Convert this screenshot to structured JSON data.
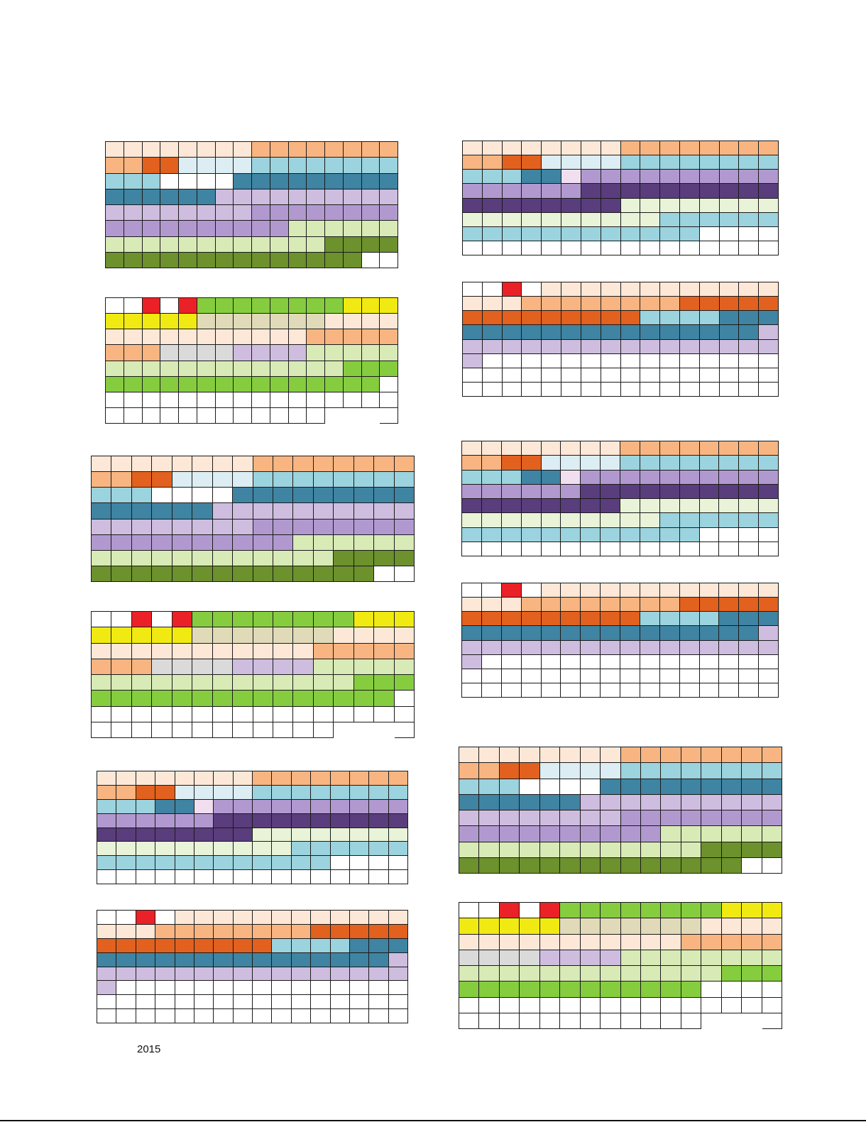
{
  "footer": {
    "year": "2015"
  },
  "colors": {
    "W": "#ffffff",
    "P": "#fde8d8",
    "O": "#f8b581",
    "D": "#e2611f",
    "I": "#dcedf3",
    "C": "#9bd3de",
    "T": "#3f84a2",
    "L": "#cfbde0",
    "M": "#b199d0",
    "N": "#5a3d7d",
    "H": "#f1dff0",
    "G": "#d8eab6",
    "E": "#6c912d",
    "F": "#e8f3d8",
    "B": "#85cd3f",
    "Y": "#f1ea12",
    "R": "#ea2227",
    "K": "#e0dab9",
    "S": "#dadada",
    "X": null
  },
  "grids": [
    {
      "name": "grid-a",
      "rows": [
        "PPPPPPPPOOOOOOOO",
        "OODDIIIICCCCCCCC",
        "CCCWWWWTTTTTTTTT",
        "TTTTTTLLLLLLLLLL",
        "LLLLLLLLMMMMMMMM",
        "MMMMMMMMMMGGGGGG",
        "GGGGGGGGGGGGEEEE",
        "EEEEEEEEEEEEEEWW"
      ]
    },
    {
      "name": "grid-b",
      "rows": [
        "WWRWRBBBBBBBBYYY",
        "YYYYYKKKKKKKPPPP",
        "PPPPPPPPPPPOOOOO",
        "OOOSSSSLLLLGGGGG",
        "GGGGGGGGGGGGGBBB",
        "BBBBBBBBBBBBBBBW",
        "WWWWWWWWWWWWWWWW",
        "WWWWWWWWWWWWXXXW"
      ]
    },
    {
      "name": "grid-c",
      "rows": [
        "PPPPPPPPOOOOOOOO",
        "OODDIIIICCCCCCCC",
        "CCCWWWWTTTTTTTTT",
        "TTTTTTLLLLLLLLLL",
        "LLLLLLLLMMMMMMMM",
        "MMMMMMMMMMGGGGGG",
        "GGGGGGGGGGGGEEEE",
        "EEEEEEEEEEEEEEWW"
      ]
    },
    {
      "name": "grid-d",
      "rows": [
        "WWRWRBBBBBBBBYYY",
        "YYYYYKKKKKKKPPPP",
        "PPPPPPPPPPPOOOOO",
        "OOOSSSSLLLLGGGGG",
        "GGGGGGGGGGGGGBBB",
        "BBBBBBBBBBBBBBBW",
        "WWWWWWWWWWWWWWWW",
        "WWWWWWWWWWWWXXXW"
      ]
    },
    {
      "name": "grid-e",
      "rows": [
        "PPPPPPPPOOOOOOOO",
        "OODDIIIICCCCCCCC",
        "CCCTTHMMMMMMMMMM",
        "MMMMMMNNNNNNNNNN",
        "NNNNNNNNFFFFFFFF",
        "FFFFFFFFFFCCCCCC",
        "CCCCCCCCCCCCWWWW",
        "WWWWWWWWWWWWWWWW"
      ]
    },
    {
      "name": "grid-f",
      "rows": [
        "WWRWPPPPPPPPPPPP",
        "PPPOOOOOOOODDDDD",
        "DDDDDDDDDCCCCTTT",
        "TTTTTTTTTTTTTTTL",
        "LLLLLLLLLLLLLLLL",
        "LWWWWWWWWWWWWWWW",
        "WWWWWWWWWWWWWWWW",
        "WWWWWWWWWWWWWWWW"
      ]
    },
    {
      "name": "grid-g",
      "rows": [
        "PPPPPPPPOOOOOOOO",
        "OODDIIIICCCCCCCC",
        "CCCTTHMMMMMMMMMM",
        "MMMMMMNNNNNNNNNN",
        "NNNNNNNNFFFFFFFF",
        "FFFFFFFFFFCCCCCC",
        "CCCCCCCCCCCCWWWW",
        "WWWWWWWWWWWWWWWW"
      ]
    },
    {
      "name": "grid-h",
      "rows": [
        "WWRWPPPPPPPPPPPP",
        "PPPOOOOOOOODDDDD",
        "DDDDDDDDDCCCCTTT",
        "TTTTTTTTTTTTTTTL",
        "LLLLLLLLLLLLLLLL",
        "LWWWWWWWWWWWWWWW",
        "WWWWWWWWWWWWWWWW",
        "WWWWWWWWWWWWWWWW"
      ]
    },
    {
      "name": "grid-i",
      "rows": [
        "PPPPPPPPOOOOOOOO",
        "OODDIIIICCCCCCCC",
        "CCCTTHMMMMMMMMMM",
        "MMMMMMNNNNNNNNNN",
        "NNNNNNNNFFFFFFFF",
        "FFFFFFFFFFCCCCCC",
        "CCCCCCCCCCCCWWWW",
        "WWWWWWWWWWWWWWWW"
      ]
    },
    {
      "name": "grid-j",
      "rows": [
        "WWRWPPPPPPPPPPPP",
        "PPPOOOOOOOODDDDD",
        "DDDDDDDDDCCCCTTT",
        "TTTTTTTTTTTTTTTL",
        "LLLLLLLLLLLLLLLL",
        "LWWWWWWWWWWWWWWW",
        "WWWWWWWWWWWWWWWW",
        "WWWWWWWWWWWWWWWW"
      ]
    },
    {
      "name": "grid-k",
      "rows": [
        "PPPPPPPPOOOOOOOO",
        "OODDIIIICCCCCCCC",
        "CCCWWWWTTTTTTTTT",
        "TTTTTTLLLLLLLLLL",
        "LLLLLLLLMMMMMMMM",
        "MMMMMMMMMMGGGGGG",
        "GGGGGGGGGGGGEEEE",
        "EEEEEEEEEEEEEEWW"
      ]
    },
    {
      "name": "grid-l",
      "rows": [
        "WWRWRBBBBBBBBYYY",
        "YYYYYKKKKKKKPPPP",
        "PPPPPPPPPPPOOOOO",
        "SSSSLLLLGGGGGGGG",
        "GGGGGGGGGGGGGBBB",
        "BBBBBBBBBBBBWWWW",
        "WWWWWWWWWWWWWWWW",
        "WWWWWWWWWWWWXXXW"
      ]
    }
  ]
}
